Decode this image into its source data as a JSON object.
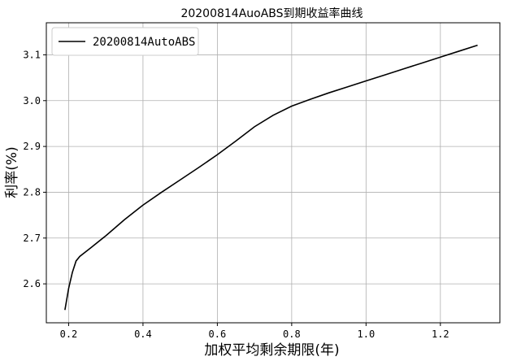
{
  "chart_data": {
    "type": "line",
    "title": "20200814AuoABS到期收益率曲线",
    "xlabel": "加权平均剩余期限(年)",
    "ylabel": "利率(%)",
    "xlim": [
      0.14,
      1.36
    ],
    "ylim": [
      2.515,
      3.17
    ],
    "xticks": [
      0.2,
      0.4,
      0.6,
      0.8,
      1.0,
      1.2
    ],
    "xtick_labels": [
      "0.2",
      "0.4",
      "0.6",
      "0.8",
      "1.0",
      "1.2"
    ],
    "yticks": [
      2.6,
      2.7,
      2.8,
      2.9,
      3.0,
      3.1
    ],
    "ytick_labels": [
      "2.6",
      "2.7",
      "2.8",
      "2.9",
      "3.0",
      "3.1"
    ],
    "grid": true,
    "legend_position": "top-left",
    "series": [
      {
        "name": "20200814AutoABS",
        "color": "#000000",
        "x": [
          0.19,
          0.2,
          0.21,
          0.22,
          0.23,
          0.26,
          0.3,
          0.35,
          0.4,
          0.45,
          0.5,
          0.55,
          0.6,
          0.65,
          0.7,
          0.75,
          0.8,
          0.85,
          0.9,
          0.95,
          1.0,
          1.05,
          1.1,
          1.15,
          1.2,
          1.25,
          1.3
        ],
        "y": [
          2.543,
          2.59,
          2.625,
          2.65,
          2.66,
          2.679,
          2.705,
          2.74,
          2.772,
          2.8,
          2.827,
          2.854,
          2.882,
          2.912,
          2.943,
          2.968,
          2.988,
          3.003,
          3.017,
          3.03,
          3.043,
          3.056,
          3.069,
          3.082,
          3.095,
          3.108,
          3.121
        ]
      }
    ]
  }
}
